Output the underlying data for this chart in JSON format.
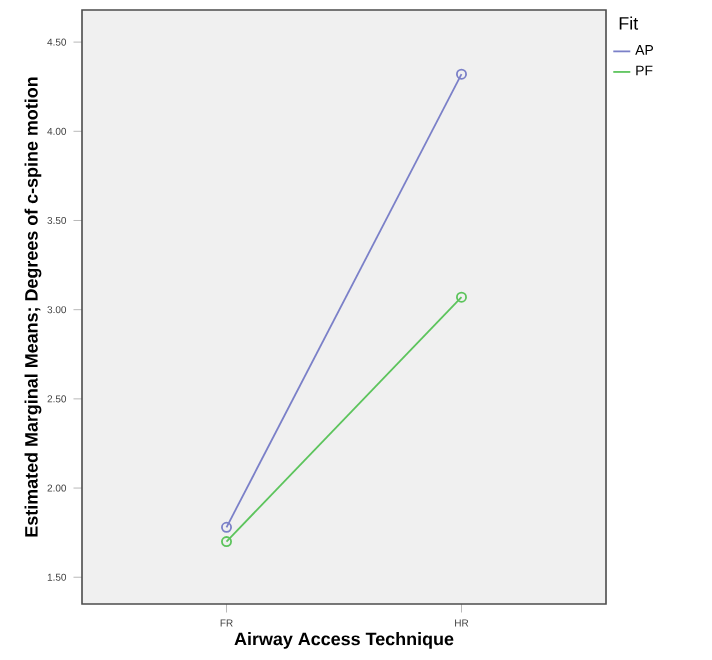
{
  "chart_data": {
    "type": "line",
    "xlabel": "Airway Access Technique",
    "ylabel": "Estimated Marginal Means; Degrees of c-spine motion",
    "legend_title": "Fit",
    "categories": [
      "FR",
      "HR"
    ],
    "series": [
      {
        "name": "AP",
        "color": "#7b80c8",
        "values": [
          1.78,
          4.32
        ]
      },
      {
        "name": "PF",
        "color": "#5cc45c",
        "values": [
          1.7,
          3.07
        ]
      }
    ],
    "ylim": [
      1.35,
      4.68
    ],
    "yticks": [
      {
        "value": 1.5,
        "label": "1.50"
      },
      {
        "value": 2.0,
        "label": "2.00"
      },
      {
        "value": 2.5,
        "label": "2.50"
      },
      {
        "value": 3.0,
        "label": "3.00"
      },
      {
        "value": 3.5,
        "label": "3.50"
      },
      {
        "value": 4.0,
        "label": "4.00"
      },
      {
        "value": 4.5,
        "label": "4.50"
      }
    ],
    "marker": "circle",
    "legend": "top right",
    "grid": false
  }
}
